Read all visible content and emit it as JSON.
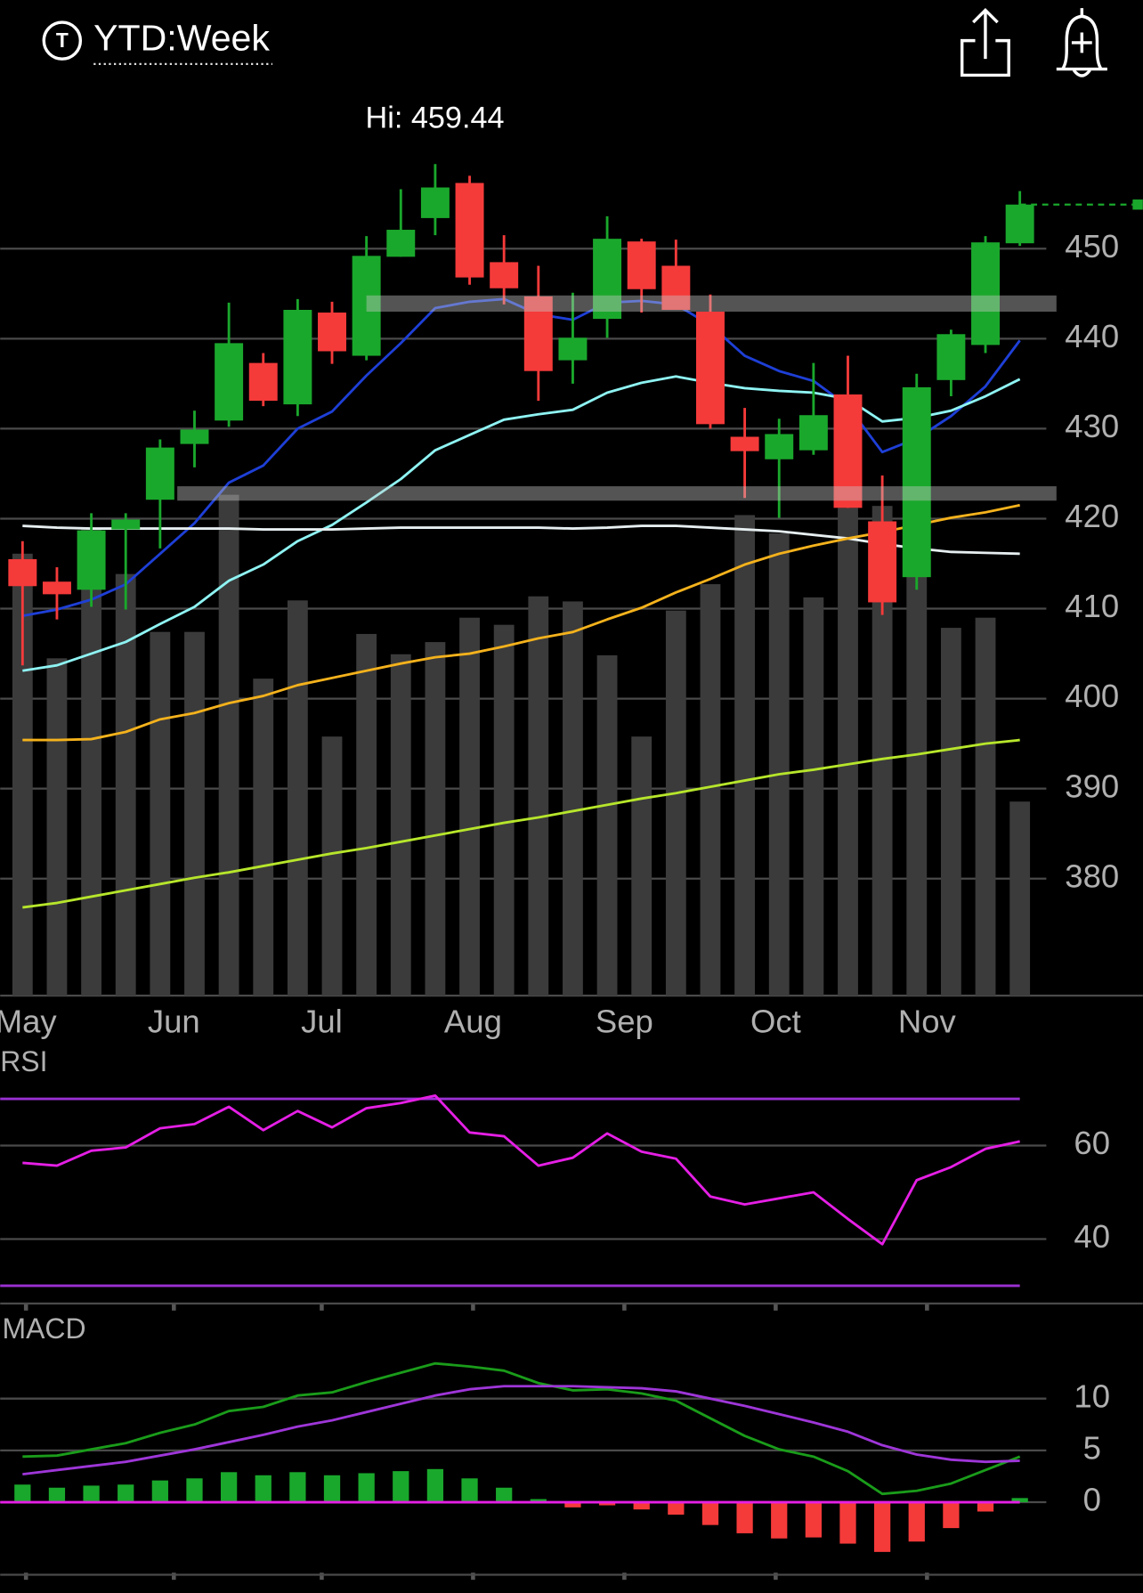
{
  "header": {
    "icon": "T",
    "title": "YTD:Week"
  },
  "chart_data": [
    {
      "type": "candlestick",
      "annotation": "Hi: 459.44",
      "open": [
        415.5,
        413.0,
        412.1,
        418.8,
        422.1,
        428.3,
        430.9,
        437.3,
        432.7,
        442.9,
        438.1,
        449.1,
        453.4,
        457.3,
        448.5,
        444.7,
        437.6,
        442.2,
        450.8,
        448.1,
        443.0,
        429.1,
        426.6,
        427.6,
        433.8,
        419.7,
        413.5,
        435.4,
        439.3,
        450.6
      ],
      "high": [
        417.5,
        414.6,
        420.6,
        420.6,
        428.8,
        432.0,
        444.0,
        438.4,
        444.4,
        444.1,
        451.4,
        456.6,
        459.4,
        458.1,
        451.5,
        448.1,
        445.1,
        453.6,
        451.1,
        451.0,
        444.9,
        432.3,
        431.1,
        437.3,
        438.1,
        424.8,
        436.1,
        441.0,
        451.4,
        456.4
      ],
      "low": [
        403.7,
        408.8,
        410.2,
        409.9,
        416.7,
        425.7,
        430.2,
        432.5,
        431.4,
        437.2,
        437.6,
        449.1,
        451.5,
        446.0,
        443.8,
        433.1,
        435.0,
        440.1,
        442.9,
        443.2,
        430.0,
        422.3,
        420.1,
        427.1,
        421.2,
        409.3,
        412.1,
        433.6,
        438.4,
        450.3
      ],
      "close": [
        412.5,
        411.6,
        418.7,
        419.9,
        427.9,
        429.9,
        439.5,
        433.1,
        443.2,
        438.6,
        449.2,
        452.1,
        456.8,
        446.8,
        445.6,
        436.4,
        440.1,
        451.1,
        445.5,
        443.2,
        430.5,
        427.5,
        429.4,
        431.5,
        421.2,
        410.7,
        434.6,
        440.5,
        450.7,
        454.9
      ],
      "volume": [
        435,
        332,
        460,
        415,
        358,
        358,
        493,
        312,
        389,
        255,
        356,
        336,
        348,
        372,
        365,
        393,
        388,
        335,
        255,
        379,
        405,
        473,
        455,
        392,
        480,
        482,
        420,
        362,
        372,
        191
      ],
      "up_color": "#1aa82c",
      "down_color": "#f53a3a",
      "volume_color": "#3b3b3b",
      "series": [
        {
          "color": "#1e3fd6",
          "values": [
            409.2,
            409.9,
            411.0,
            412.7,
            416.1,
            419.5,
            424.0,
            425.9,
            430.0,
            431.9,
            435.9,
            439.5,
            443.4,
            444.1,
            444.4,
            442.7,
            442.1,
            444.0,
            444.2,
            443.8,
            441.5,
            438.1,
            436.4,
            435.3,
            432.5,
            427.4,
            428.9,
            431.4,
            434.7,
            439.8
          ]
        },
        {
          "color": "#8ff3f3",
          "values": [
            403.1,
            403.7,
            405.0,
            406.3,
            408.3,
            410.2,
            413.1,
            414.9,
            417.5,
            419.3,
            421.8,
            424.4,
            427.6,
            429.3,
            431.0,
            431.6,
            432.1,
            434.0,
            435.1,
            435.8,
            435.1,
            434.5,
            434.2,
            434.0,
            433.3,
            430.8,
            431.2,
            432.0,
            433.6,
            435.5
          ]
        },
        {
          "color": "#e6eef0",
          "values": [
            419.2,
            419.0,
            418.9,
            418.9,
            418.9,
            418.9,
            418.9,
            418.8,
            418.8,
            418.8,
            418.9,
            419.0,
            419.0,
            419.0,
            419.0,
            419.0,
            418.9,
            419.0,
            419.2,
            419.2,
            419.0,
            418.8,
            418.6,
            418.2,
            417.8,
            417.2,
            416.7,
            416.3,
            416.2,
            416.1
          ]
        },
        {
          "color": "#f4b21c",
          "values": [
            395.4,
            395.4,
            395.5,
            396.3,
            397.7,
            398.4,
            399.5,
            400.3,
            401.5,
            402.3,
            403.1,
            403.9,
            404.6,
            405.0,
            405.8,
            406.7,
            407.4,
            408.8,
            410.1,
            411.8,
            413.3,
            414.9,
            416.1,
            417.0,
            417.8,
            418.5,
            419.3,
            420.1,
            420.7,
            421.5
          ]
        },
        {
          "color": "#b7e62b",
          "values": [
            376.8,
            377.3,
            378.0,
            378.7,
            379.4,
            380.1,
            380.7,
            381.4,
            382.1,
            382.8,
            383.4,
            384.1,
            384.8,
            385.5,
            386.2,
            386.8,
            387.5,
            388.2,
            388.9,
            389.5,
            390.2,
            390.9,
            391.6,
            392.1,
            392.7,
            393.3,
            393.8,
            394.4,
            395.0,
            395.4
          ]
        }
      ],
      "zones": [
        {
          "from": 10,
          "low": 443.0,
          "high": 444.8
        },
        {
          "from": 4.5,
          "low": 422.0,
          "high": 423.6
        }
      ],
      "ylim": [
        367,
        468.6
      ],
      "yticks": [
        380,
        390,
        400,
        410,
        420,
        430,
        440,
        450
      ],
      "grid": true,
      "xticks": [
        {
          "value": 0.1,
          "label": "May"
        },
        {
          "value": 4.4,
          "label": "Jun"
        },
        {
          "value": 8.7,
          "label": "Jul"
        },
        {
          "value": 13.1,
          "label": "Aug"
        },
        {
          "value": 17.5,
          "label": "Sep"
        },
        {
          "value": 21.9,
          "label": "Oct"
        },
        {
          "value": 26.3,
          "label": "Nov"
        }
      ]
    },
    {
      "type": "line",
      "title": "RSI",
      "series": [
        {
          "color": "#e51fe5",
          "values": [
            56.3,
            55.7,
            58.9,
            59.6,
            63.7,
            64.6,
            68.3,
            63.3,
            67.4,
            63.9,
            68.0,
            69.1,
            70.7,
            62.8,
            62.0,
            55.7,
            57.4,
            62.6,
            58.7,
            57.2,
            49.1,
            47.4,
            48.7,
            50.0,
            44.3,
            38.9,
            52.6,
            55.4,
            59.3,
            60.9
          ]
        }
      ],
      "bands": [
        30,
        70
      ],
      "band_color": "#9a30d2",
      "ylim": [
        26,
        76
      ],
      "yticks": [
        40,
        60
      ],
      "grid": true
    },
    {
      "type": "macd",
      "title": "MACD",
      "series": [
        {
          "color": "#1a9c1a",
          "values": [
            4.4,
            4.5,
            5.1,
            5.7,
            6.7,
            7.5,
            8.8,
            9.2,
            10.3,
            10.6,
            11.6,
            12.5,
            13.4,
            13.1,
            12.7,
            11.5,
            10.8,
            10.9,
            10.5,
            9.8,
            8.1,
            6.4,
            5.1,
            4.4,
            3.0,
            0.8,
            1.1,
            1.8,
            3.1,
            4.4
          ]
        },
        {
          "color": "#9e36d8",
          "values": [
            2.7,
            3.1,
            3.5,
            3.9,
            4.5,
            5.1,
            5.8,
            6.5,
            7.3,
            7.9,
            8.7,
            9.5,
            10.3,
            10.9,
            11.2,
            11.2,
            11.2,
            11.1,
            11.0,
            10.7,
            10.0,
            9.3,
            8.5,
            7.7,
            6.8,
            5.5,
            4.6,
            4.1,
            3.9,
            4.0
          ]
        }
      ],
      "histogram": [
        1.7,
        1.4,
        1.6,
        1.7,
        2.1,
        2.3,
        2.9,
        2.6,
        2.9,
        2.6,
        2.8,
        3.0,
        3.2,
        2.3,
        1.4,
        0.3,
        -0.5,
        -0.3,
        -0.7,
        -1.2,
        -2.2,
        -3.0,
        -3.5,
        -3.4,
        -4.0,
        -4.8,
        -3.8,
        -2.5,
        -0.9,
        0.4
      ],
      "up_color": "#1aa82c",
      "down_color": "#f53a3a",
      "zero_color": "#e51fe5",
      "ylim": [
        -7,
        18.5
      ],
      "yticks": [
        0,
        5,
        10
      ],
      "grid": true
    }
  ]
}
